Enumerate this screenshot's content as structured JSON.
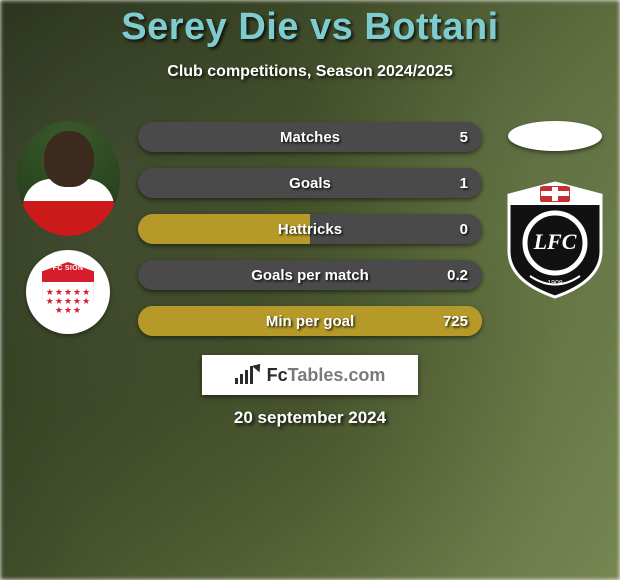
{
  "title": {
    "player1": "Serey Die",
    "vs": "vs",
    "player2": "Bottani"
  },
  "title_color": "#7ecccf",
  "subtitle": "Club competitions, Season 2024/2025",
  "brand": {
    "text_prefix": "Fc",
    "text_suffix": "Tables.com"
  },
  "date": "20 september 2024",
  "player1_club_text": "FC SION",
  "stat_colors": {
    "left": "#b59a2a",
    "right": "#4a4a4a"
  },
  "stats": [
    {
      "label": "Matches",
      "value_right": "5",
      "left_pct": 0,
      "right_pct": 100
    },
    {
      "label": "Goals",
      "value_right": "1",
      "left_pct": 0,
      "right_pct": 100
    },
    {
      "label": "Hattricks",
      "value_right": "0",
      "left_pct": 50,
      "right_pct": 50
    },
    {
      "label": "Goals per match",
      "value_right": "0.2",
      "left_pct": 0,
      "right_pct": 100
    },
    {
      "label": "Min per goal",
      "value_right": "725",
      "left_pct": 100,
      "right_pct": 0
    }
  ]
}
